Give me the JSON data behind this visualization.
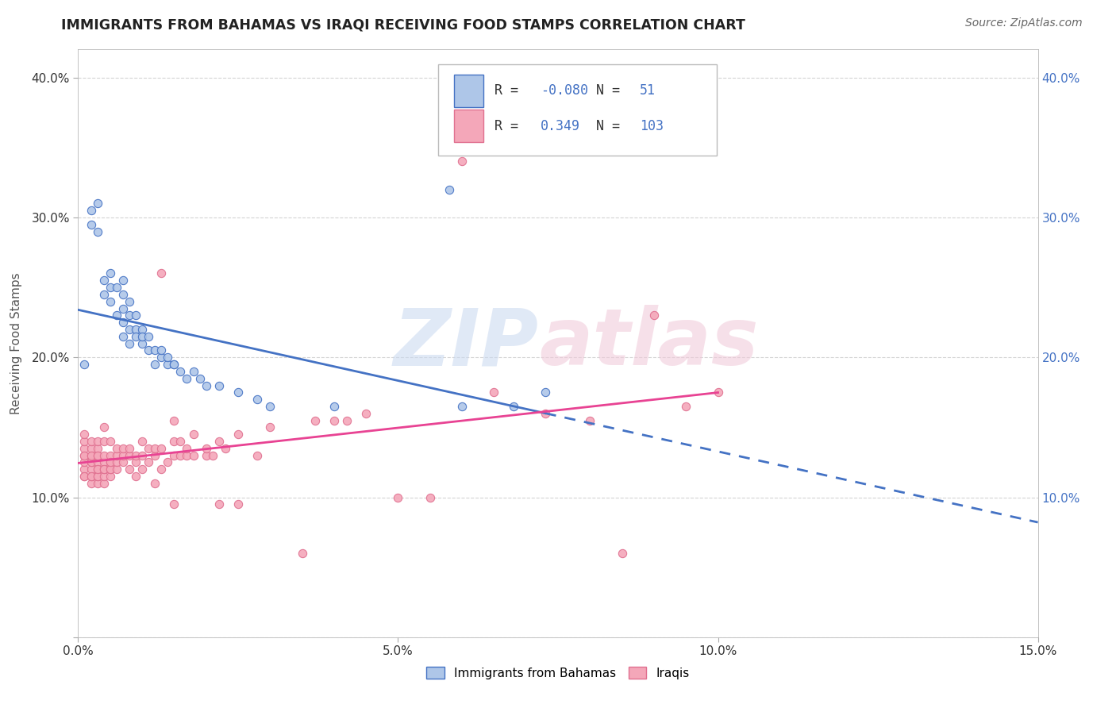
{
  "title": "IMMIGRANTS FROM BAHAMAS VS IRAQI RECEIVING FOOD STAMPS CORRELATION CHART",
  "source": "Source: ZipAtlas.com",
  "ylabel": "Receiving Food Stamps",
  "xlim": [
    0.0,
    0.15
  ],
  "ylim": [
    0.0,
    0.42
  ],
  "x_ticks": [
    0.0,
    0.05,
    0.1,
    0.15
  ],
  "x_tick_labels": [
    "0.0%",
    "5.0%",
    "10.0%",
    "15.0%"
  ],
  "y_ticks_left": [
    0.0,
    0.1,
    0.2,
    0.3,
    0.4
  ],
  "y_tick_labels_left": [
    "",
    "10.0%",
    "20.0%",
    "30.0%",
    "40.0%"
  ],
  "y_ticks_right": [
    0.1,
    0.2,
    0.3,
    0.4
  ],
  "y_tick_labels_right": [
    "10.0%",
    "20.0%",
    "30.0%",
    "40.0%"
  ],
  "legend_labels": [
    "Immigrants from Bahamas",
    "Iraqis"
  ],
  "bahamas_color": "#aec6e8",
  "iraqi_color": "#f4a7b9",
  "bahamas_line_color": "#4472c4",
  "iraqi_line_color": "#e84393",
  "bahamas_R": -0.08,
  "bahamas_N": 51,
  "iraqi_R": 0.349,
  "iraqi_N": 103,
  "watermark_zip": "ZIP",
  "watermark_atlas": "atlas",
  "background_color": "#ffffff",
  "grid_color": "#d0d0d0",
  "bahamas_scatter": [
    [
      0.001,
      0.195
    ],
    [
      0.002,
      0.295
    ],
    [
      0.002,
      0.305
    ],
    [
      0.003,
      0.29
    ],
    [
      0.003,
      0.31
    ],
    [
      0.004,
      0.245
    ],
    [
      0.004,
      0.255
    ],
    [
      0.005,
      0.24
    ],
    [
      0.005,
      0.25
    ],
    [
      0.005,
      0.26
    ],
    [
      0.006,
      0.23
    ],
    [
      0.006,
      0.25
    ],
    [
      0.007,
      0.235
    ],
    [
      0.007,
      0.245
    ],
    [
      0.007,
      0.255
    ],
    [
      0.007,
      0.215
    ],
    [
      0.007,
      0.225
    ],
    [
      0.008,
      0.22
    ],
    [
      0.008,
      0.23
    ],
    [
      0.008,
      0.24
    ],
    [
      0.008,
      0.21
    ],
    [
      0.009,
      0.22
    ],
    [
      0.009,
      0.23
    ],
    [
      0.009,
      0.215
    ],
    [
      0.01,
      0.21
    ],
    [
      0.01,
      0.22
    ],
    [
      0.01,
      0.215
    ],
    [
      0.011,
      0.205
    ],
    [
      0.011,
      0.215
    ],
    [
      0.012,
      0.195
    ],
    [
      0.012,
      0.205
    ],
    [
      0.013,
      0.2
    ],
    [
      0.013,
      0.205
    ],
    [
      0.014,
      0.195
    ],
    [
      0.014,
      0.2
    ],
    [
      0.015,
      0.195
    ],
    [
      0.015,
      0.195
    ],
    [
      0.016,
      0.19
    ],
    [
      0.017,
      0.185
    ],
    [
      0.018,
      0.19
    ],
    [
      0.019,
      0.185
    ],
    [
      0.02,
      0.18
    ],
    [
      0.022,
      0.18
    ],
    [
      0.025,
      0.175
    ],
    [
      0.028,
      0.17
    ],
    [
      0.03,
      0.165
    ],
    [
      0.04,
      0.165
    ],
    [
      0.058,
      0.32
    ],
    [
      0.06,
      0.165
    ],
    [
      0.068,
      0.165
    ],
    [
      0.073,
      0.175
    ]
  ],
  "iraqi_scatter": [
    [
      0.001,
      0.115
    ],
    [
      0.001,
      0.12
    ],
    [
      0.001,
      0.125
    ],
    [
      0.001,
      0.13
    ],
    [
      0.001,
      0.135
    ],
    [
      0.001,
      0.14
    ],
    [
      0.001,
      0.145
    ],
    [
      0.001,
      0.115
    ],
    [
      0.001,
      0.13
    ],
    [
      0.002,
      0.11
    ],
    [
      0.002,
      0.115
    ],
    [
      0.002,
      0.12
    ],
    [
      0.002,
      0.125
    ],
    [
      0.002,
      0.13
    ],
    [
      0.002,
      0.135
    ],
    [
      0.002,
      0.14
    ],
    [
      0.002,
      0.115
    ],
    [
      0.002,
      0.125
    ],
    [
      0.002,
      0.13
    ],
    [
      0.003,
      0.11
    ],
    [
      0.003,
      0.115
    ],
    [
      0.003,
      0.12
    ],
    [
      0.003,
      0.125
    ],
    [
      0.003,
      0.13
    ],
    [
      0.003,
      0.135
    ],
    [
      0.003,
      0.14
    ],
    [
      0.003,
      0.115
    ],
    [
      0.003,
      0.12
    ],
    [
      0.003,
      0.13
    ],
    [
      0.004,
      0.11
    ],
    [
      0.004,
      0.115
    ],
    [
      0.004,
      0.12
    ],
    [
      0.004,
      0.125
    ],
    [
      0.004,
      0.13
    ],
    [
      0.004,
      0.14
    ],
    [
      0.004,
      0.15
    ],
    [
      0.004,
      0.12
    ],
    [
      0.005,
      0.115
    ],
    [
      0.005,
      0.12
    ],
    [
      0.005,
      0.125
    ],
    [
      0.005,
      0.13
    ],
    [
      0.005,
      0.14
    ],
    [
      0.005,
      0.12
    ],
    [
      0.005,
      0.125
    ],
    [
      0.006,
      0.12
    ],
    [
      0.006,
      0.125
    ],
    [
      0.006,
      0.13
    ],
    [
      0.006,
      0.135
    ],
    [
      0.007,
      0.125
    ],
    [
      0.007,
      0.13
    ],
    [
      0.007,
      0.135
    ],
    [
      0.008,
      0.12
    ],
    [
      0.008,
      0.13
    ],
    [
      0.008,
      0.135
    ],
    [
      0.009,
      0.115
    ],
    [
      0.009,
      0.125
    ],
    [
      0.009,
      0.13
    ],
    [
      0.01,
      0.12
    ],
    [
      0.01,
      0.13
    ],
    [
      0.01,
      0.14
    ],
    [
      0.011,
      0.125
    ],
    [
      0.011,
      0.135
    ],
    [
      0.012,
      0.11
    ],
    [
      0.012,
      0.13
    ],
    [
      0.012,
      0.135
    ],
    [
      0.013,
      0.12
    ],
    [
      0.013,
      0.135
    ],
    [
      0.013,
      0.26
    ],
    [
      0.014,
      0.125
    ],
    [
      0.015,
      0.095
    ],
    [
      0.015,
      0.13
    ],
    [
      0.015,
      0.14
    ],
    [
      0.015,
      0.155
    ],
    [
      0.016,
      0.13
    ],
    [
      0.016,
      0.14
    ],
    [
      0.017,
      0.13
    ],
    [
      0.017,
      0.135
    ],
    [
      0.018,
      0.13
    ],
    [
      0.018,
      0.145
    ],
    [
      0.02,
      0.13
    ],
    [
      0.02,
      0.135
    ],
    [
      0.021,
      0.13
    ],
    [
      0.022,
      0.095
    ],
    [
      0.022,
      0.14
    ],
    [
      0.023,
      0.135
    ],
    [
      0.025,
      0.095
    ],
    [
      0.025,
      0.145
    ],
    [
      0.028,
      0.13
    ],
    [
      0.03,
      0.15
    ],
    [
      0.035,
      0.06
    ],
    [
      0.037,
      0.155
    ],
    [
      0.04,
      0.155
    ],
    [
      0.042,
      0.155
    ],
    [
      0.045,
      0.16
    ],
    [
      0.05,
      0.1
    ],
    [
      0.055,
      0.1
    ],
    [
      0.06,
      0.34
    ],
    [
      0.065,
      0.175
    ],
    [
      0.073,
      0.16
    ],
    [
      0.08,
      0.155
    ],
    [
      0.085,
      0.06
    ],
    [
      0.09,
      0.23
    ],
    [
      0.095,
      0.165
    ],
    [
      0.1,
      0.175
    ]
  ]
}
